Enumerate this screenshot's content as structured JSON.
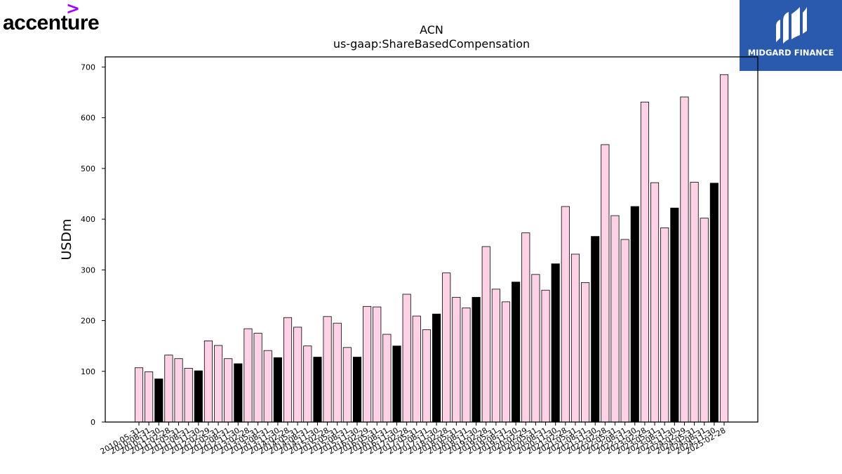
{
  "brand": {
    "left_logo_text": "accenture",
    "left_logo_mark": ">",
    "right_logo_text": "MIDGARD FINANCE"
  },
  "chart_data": {
    "type": "bar",
    "title": "ACN",
    "subtitle": "us-gaap:ShareBasedCompensation",
    "ylabel": "USDm",
    "xlabel": "",
    "ylim": [
      0,
      720
    ],
    "yticks": [
      0,
      100,
      200,
      300,
      400,
      500,
      600,
      700
    ],
    "grid": false,
    "colors": {
      "pink": "#ffd1e6",
      "black": "#000000",
      "outline": "#000000"
    },
    "categories": [
      "2010-05-31",
      "2010-08-31",
      "2010-11-30",
      "2011-02-28",
      "2011-05-31",
      "2011-08-31",
      "2011-11-30",
      "2012-02-29",
      "2012-05-31",
      "2012-08-31",
      "2012-11-30",
      "2013-02-28",
      "2013-05-31",
      "2013-08-31",
      "2013-11-30",
      "2014-02-28",
      "2014-05-31",
      "2014-08-31",
      "2014-11-30",
      "2015-02-28",
      "2015-05-31",
      "2015-08-31",
      "2015-11-30",
      "2016-02-29",
      "2016-05-31",
      "2016-08-31",
      "2016-11-30",
      "2017-02-28",
      "2017-05-31",
      "2017-08-31",
      "2017-11-30",
      "2018-02-28",
      "2018-05-31",
      "2018-08-31",
      "2018-11-30",
      "2019-02-28",
      "2019-05-31",
      "2019-08-31",
      "2019-11-30",
      "2020-02-29",
      "2020-05-31",
      "2020-08-31",
      "2020-11-30",
      "2021-02-28",
      "2021-05-31",
      "2021-08-31",
      "2021-11-30",
      "2022-02-28",
      "2022-05-31",
      "2022-08-31",
      "2022-11-30",
      "2023-02-28",
      "2023-05-31",
      "2023-08-31",
      "2023-11-30",
      "2024-02-29",
      "2024-05-31",
      "2024-08-31",
      "2024-11-30",
      "2025-02-28"
    ],
    "values": [
      107,
      99,
      85,
      132,
      125,
      106,
      101,
      160,
      151,
      125,
      115,
      184,
      175,
      141,
      127,
      206,
      187,
      150,
      128,
      208,
      195,
      147,
      128,
      228,
      227,
      173,
      150,
      252,
      209,
      182,
      213,
      294,
      246,
      225,
      246,
      346,
      262,
      237,
      276,
      373,
      291,
      260,
      312,
      425,
      331,
      275,
      366,
      547,
      407,
      360,
      425,
      631,
      472,
      383,
      422,
      641,
      473,
      402,
      471,
      685
    ],
    "bar_color": [
      "pink",
      "pink",
      "black",
      "pink",
      "pink",
      "pink",
      "black",
      "pink",
      "pink",
      "pink",
      "black",
      "pink",
      "pink",
      "pink",
      "black",
      "pink",
      "pink",
      "pink",
      "black",
      "pink",
      "pink",
      "pink",
      "black",
      "pink",
      "pink",
      "pink",
      "black",
      "pink",
      "pink",
      "pink",
      "black",
      "pink",
      "pink",
      "pink",
      "black",
      "pink",
      "pink",
      "pink",
      "black",
      "pink",
      "pink",
      "pink",
      "black",
      "pink",
      "pink",
      "pink",
      "black",
      "pink",
      "pink",
      "pink",
      "black",
      "pink",
      "pink",
      "pink",
      "black",
      "pink",
      "pink",
      "pink",
      "black",
      "pink"
    ]
  }
}
